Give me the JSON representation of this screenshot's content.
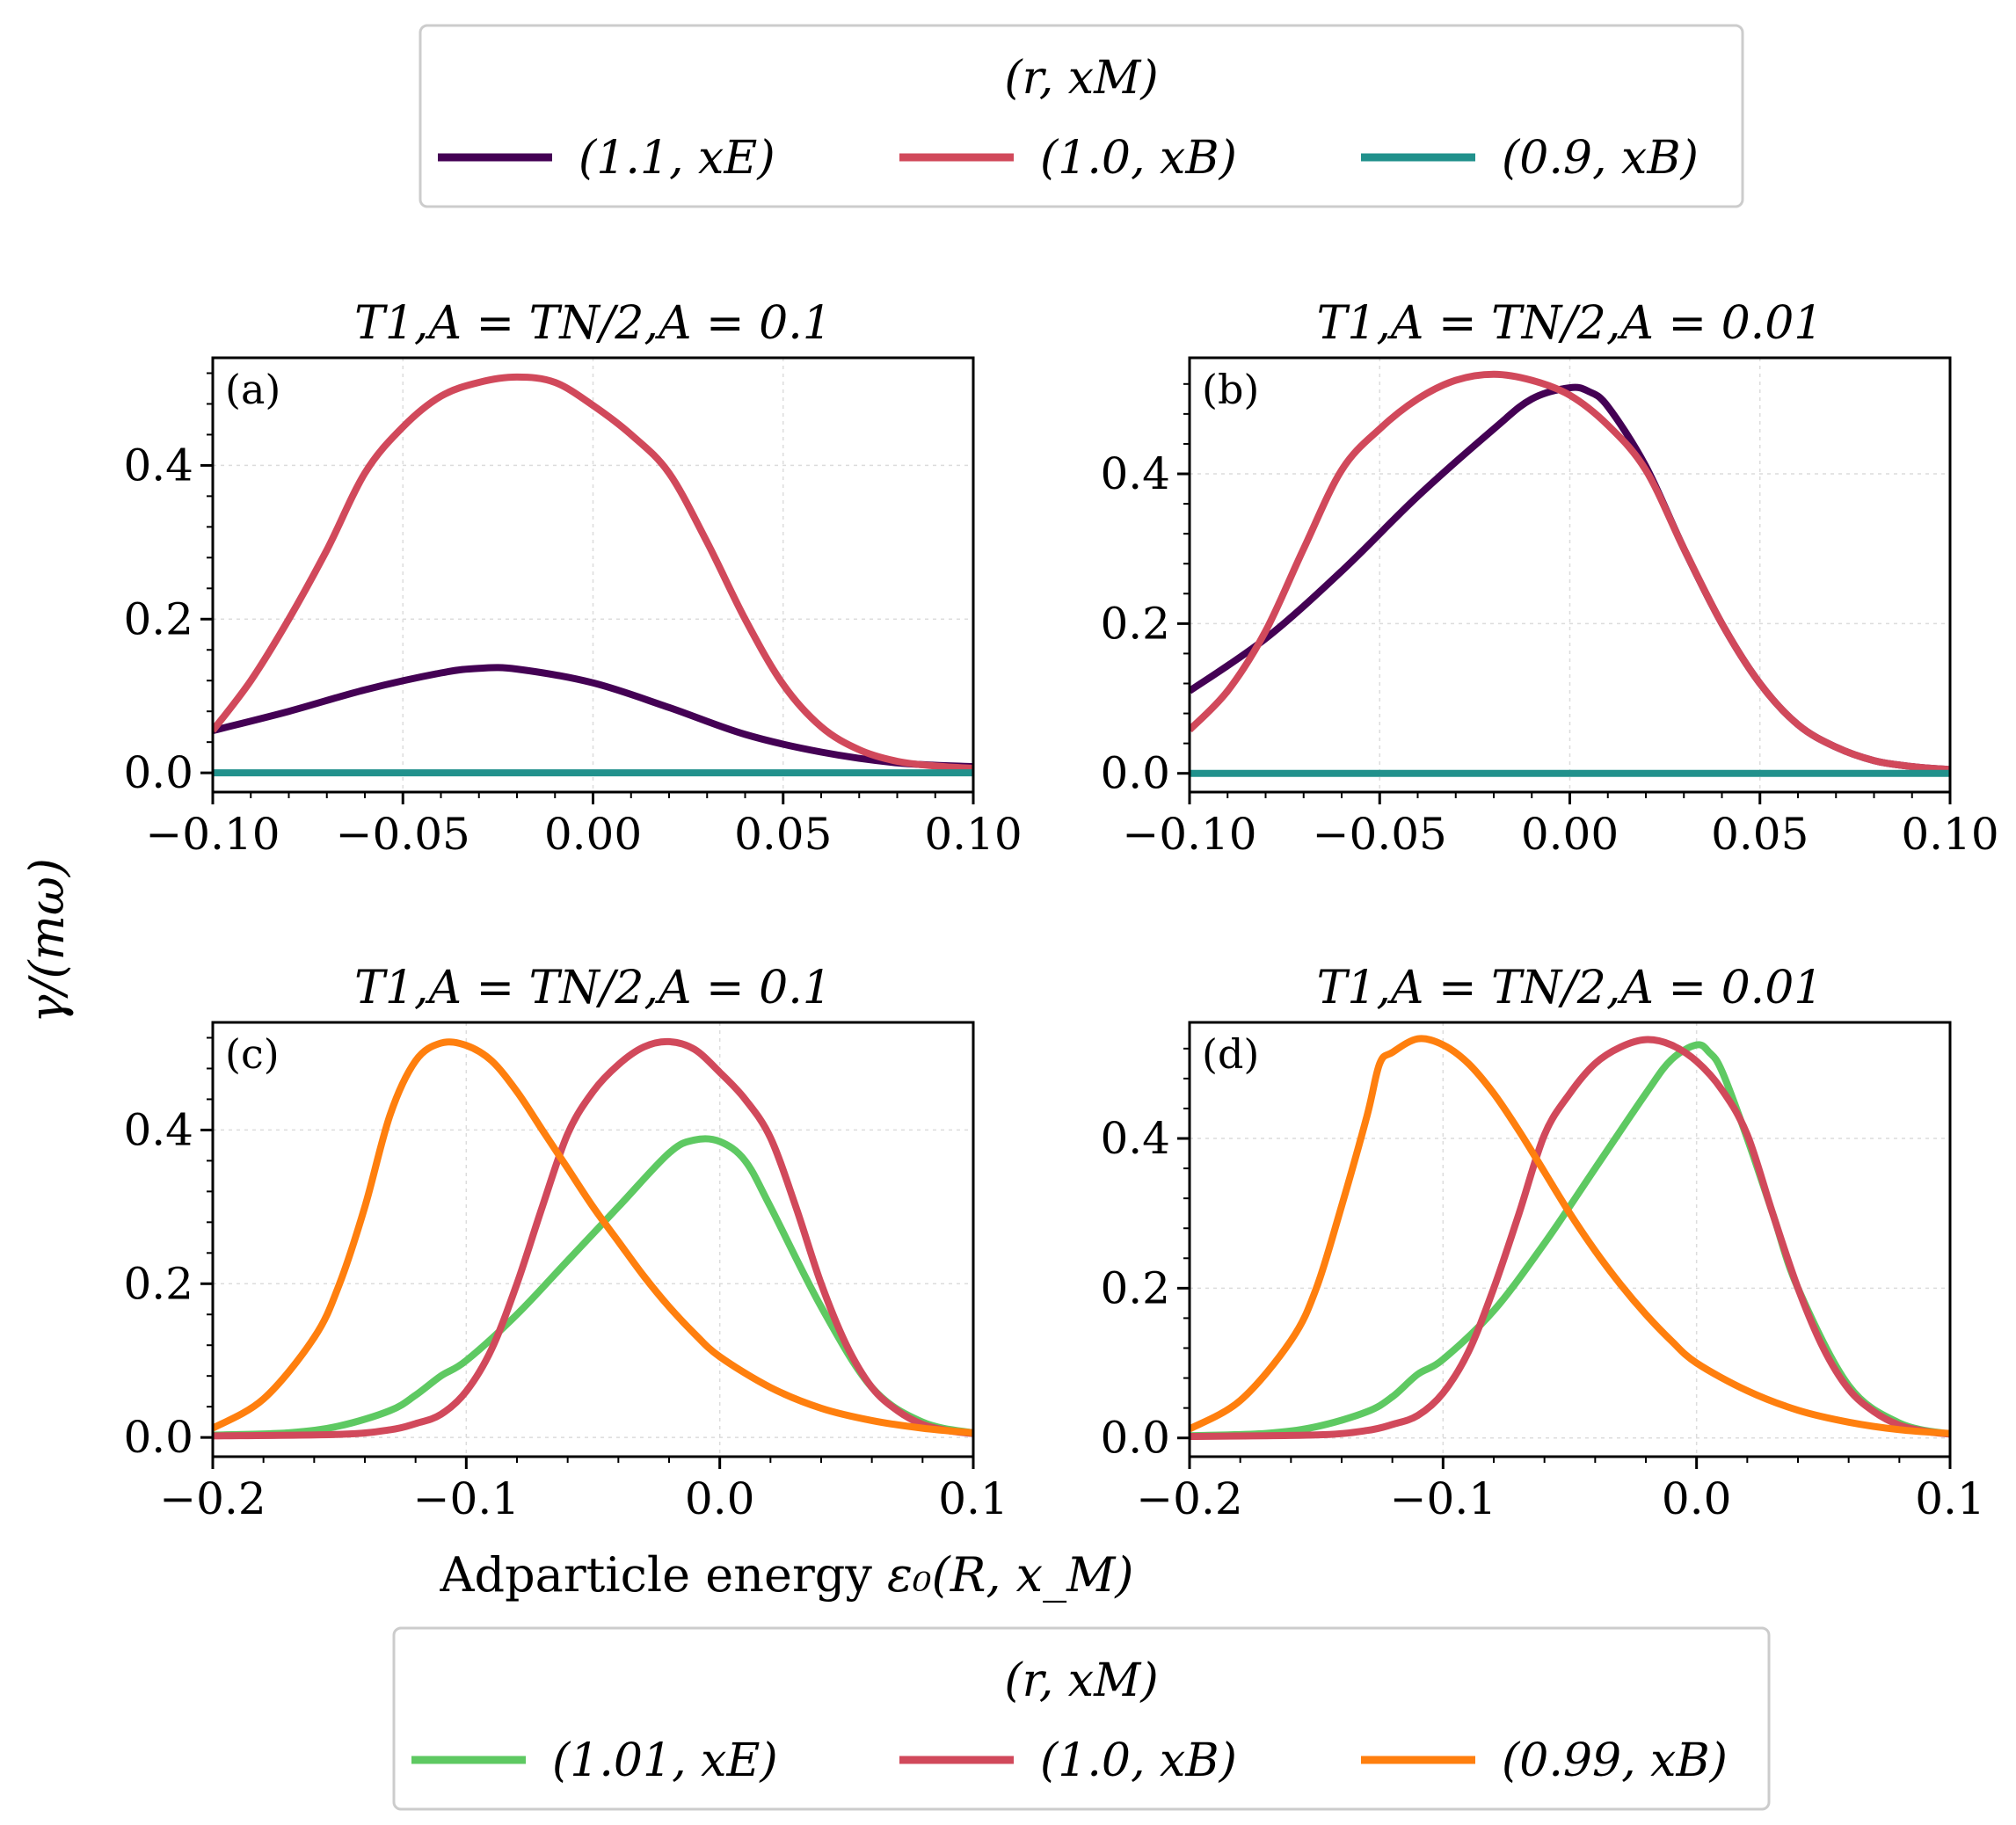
{
  "figure": {
    "ylabel": "γ/(mω)",
    "xlabel_plain": "Adparticle energy ",
    "xlabel_math": "ε₀(R, x_M)"
  },
  "legends": {
    "top": {
      "title": "(r, x_M)",
      "entries": [
        {
          "label": "(1.1, x_E)",
          "color": "#440154"
        },
        {
          "label": "(1.0, x_B)",
          "color": "#d1495b"
        },
        {
          "label": "(0.9, x_B)",
          "color": "#21918c"
        }
      ]
    },
    "bottom": {
      "title": "(r, x_M)",
      "entries": [
        {
          "label": "(1.01, x_E)",
          "color": "#5ec962"
        },
        {
          "label": "(1.0, x_B)",
          "color": "#d1495b"
        },
        {
          "label": "(0.99, x_B)",
          "color": "#ff7f0e"
        }
      ]
    }
  },
  "chart_data": [
    {
      "type": "line",
      "panel_label": "(a)",
      "title": "T_{1,A} = T_{N/2,A} = 0.1",
      "xlim": [
        -0.1,
        0.1
      ],
      "ylim": [
        -0.025,
        0.54
      ],
      "xticks": [
        -0.1,
        -0.05,
        0.0,
        0.05,
        0.1
      ],
      "xtick_labels": [
        "−0.10",
        "−0.05",
        "0.00",
        "0.05",
        "0.10"
      ],
      "yticks": [
        0.0,
        0.2,
        0.4
      ],
      "ytick_labels": [
        "0.0",
        "0.2",
        "0.4"
      ],
      "grid": true,
      "series": [
        {
          "name": "(1.1, x_E)",
          "color": "#440154",
          "x": [
            -0.1,
            -0.08,
            -0.06,
            -0.04,
            -0.03,
            -0.02,
            0.0,
            0.02,
            0.04,
            0.06,
            0.08,
            0.1
          ],
          "y": [
            0.055,
            0.08,
            0.108,
            0.13,
            0.136,
            0.135,
            0.117,
            0.085,
            0.05,
            0.027,
            0.013,
            0.008
          ]
        },
        {
          "name": "(1.0, x_B)",
          "color": "#d1495b",
          "x": [
            -0.1,
            -0.09,
            -0.08,
            -0.07,
            -0.06,
            -0.05,
            -0.04,
            -0.03,
            -0.02,
            -0.01,
            0.0,
            0.01,
            0.02,
            0.03,
            0.04,
            0.05,
            0.06,
            0.07,
            0.08,
            0.09,
            0.1
          ],
          "y": [
            0.055,
            0.12,
            0.2,
            0.29,
            0.39,
            0.45,
            0.49,
            0.508,
            0.515,
            0.508,
            0.478,
            0.44,
            0.39,
            0.3,
            0.2,
            0.115,
            0.06,
            0.03,
            0.015,
            0.009,
            0.006
          ]
        },
        {
          "name": "(0.9, x_B)",
          "color": "#21918c",
          "x": [
            -0.1,
            0.1
          ],
          "y": [
            0.0,
            0.0
          ]
        }
      ]
    },
    {
      "type": "line",
      "panel_label": "(b)",
      "title": "T_{1,A} = T_{N/2,A} = 0.01",
      "xlim": [
        -0.1,
        0.1
      ],
      "ylim": [
        -0.025,
        0.555
      ],
      "xticks": [
        -0.1,
        -0.05,
        0.0,
        0.05,
        0.1
      ],
      "xtick_labels": [
        "−0.10",
        "−0.05",
        "0.00",
        "0.05",
        "0.10"
      ],
      "yticks": [
        0.0,
        0.2,
        0.4
      ],
      "ytick_labels": [
        "0.0",
        "0.2",
        "0.4"
      ],
      "grid": true,
      "series": [
        {
          "name": "(1.1, x_E)",
          "color": "#440154",
          "x": [
            -0.1,
            -0.08,
            -0.06,
            -0.04,
            -0.02,
            -0.01,
            0.0,
            0.005,
            0.01,
            0.02,
            0.03,
            0.04,
            0.05,
            0.06,
            0.07,
            0.08,
            0.09,
            0.1
          ],
          "y": [
            0.11,
            0.18,
            0.27,
            0.37,
            0.46,
            0.5,
            0.515,
            0.51,
            0.49,
            0.41,
            0.3,
            0.2,
            0.12,
            0.065,
            0.035,
            0.017,
            0.009,
            0.005
          ]
        },
        {
          "name": "(1.0, x_B)",
          "color": "#d1495b",
          "x": [
            -0.1,
            -0.09,
            -0.08,
            -0.07,
            -0.06,
            -0.05,
            -0.04,
            -0.03,
            -0.02,
            -0.01,
            0.0,
            0.01,
            0.02,
            0.03,
            0.04,
            0.05,
            0.06,
            0.07,
            0.08,
            0.09,
            0.1
          ],
          "y": [
            0.058,
            0.11,
            0.19,
            0.3,
            0.405,
            0.46,
            0.5,
            0.525,
            0.533,
            0.525,
            0.505,
            0.465,
            0.405,
            0.3,
            0.2,
            0.12,
            0.065,
            0.035,
            0.017,
            0.009,
            0.005
          ]
        },
        {
          "name": "(0.9, x_B)",
          "color": "#21918c",
          "x": [
            -0.1,
            0.1
          ],
          "y": [
            0.0,
            0.0
          ]
        }
      ]
    },
    {
      "type": "line",
      "panel_label": "(c)",
      "title": "T_{1,A} = T_{N/2,A} = 0.1",
      "xlim": [
        -0.2,
        0.1
      ],
      "ylim": [
        -0.025,
        0.54
      ],
      "xticks": [
        -0.2,
        -0.1,
        0.0,
        0.1
      ],
      "xtick_labels": [
        "−0.2",
        "−0.1",
        "0.0",
        "0.1"
      ],
      "yticks": [
        0.0,
        0.2,
        0.4
      ],
      "ytick_labels": [
        "0.0",
        "0.2",
        "0.4"
      ],
      "grid": true,
      "series": [
        {
          "name": "(1.01, x_E)",
          "color": "#5ec962",
          "x": [
            -0.2,
            -0.17,
            -0.15,
            -0.13,
            -0.12,
            -0.11,
            -0.1,
            -0.08,
            -0.06,
            -0.04,
            -0.02,
            -0.01,
            0.0,
            0.01,
            0.02,
            0.04,
            0.06,
            0.08,
            0.1
          ],
          "y": [
            0.003,
            0.006,
            0.015,
            0.035,
            0.055,
            0.08,
            0.1,
            0.16,
            0.23,
            0.3,
            0.37,
            0.387,
            0.385,
            0.36,
            0.3,
            0.17,
            0.065,
            0.02,
            0.006
          ]
        },
        {
          "name": "(1.0, x_B)",
          "color": "#d1495b",
          "x": [
            -0.2,
            -0.15,
            -0.13,
            -0.12,
            -0.11,
            -0.1,
            -0.09,
            -0.08,
            -0.07,
            -0.06,
            -0.05,
            -0.04,
            -0.03,
            -0.02,
            -0.01,
            0.0,
            0.01,
            0.02,
            0.03,
            0.04,
            0.05,
            0.06,
            0.07,
            0.08,
            0.09,
            0.1
          ],
          "y": [
            0.002,
            0.004,
            0.01,
            0.018,
            0.03,
            0.06,
            0.115,
            0.2,
            0.3,
            0.395,
            0.45,
            0.485,
            0.508,
            0.515,
            0.505,
            0.475,
            0.44,
            0.39,
            0.3,
            0.2,
            0.12,
            0.065,
            0.035,
            0.017,
            0.009,
            0.005
          ]
        },
        {
          "name": "(0.99, x_B)",
          "color": "#ff7f0e",
          "x": [
            -0.2,
            -0.18,
            -0.16,
            -0.15,
            -0.14,
            -0.13,
            -0.12,
            -0.11,
            -0.1,
            -0.09,
            -0.08,
            -0.07,
            -0.06,
            -0.05,
            -0.04,
            -0.03,
            -0.02,
            -0.01,
            0.0,
            0.02,
            0.04,
            0.06,
            0.08,
            0.1
          ],
          "y": [
            0.012,
            0.05,
            0.13,
            0.2,
            0.3,
            0.42,
            0.49,
            0.513,
            0.51,
            0.49,
            0.45,
            0.4,
            0.35,
            0.3,
            0.255,
            0.21,
            0.17,
            0.135,
            0.105,
            0.065,
            0.038,
            0.022,
            0.012,
            0.006
          ]
        }
      ]
    },
    {
      "type": "line",
      "panel_label": "(d)",
      "title": "T_{1,A} = T_{N/2,A} = 0.01",
      "xlim": [
        -0.2,
        0.1
      ],
      "ylim": [
        -0.025,
        0.555
      ],
      "xticks": [
        -0.2,
        -0.1,
        0.0,
        0.1
      ],
      "xtick_labels": [
        "−0.2",
        "−0.1",
        "0.0",
        "0.1"
      ],
      "yticks": [
        0.0,
        0.2,
        0.4
      ],
      "ytick_labels": [
        "0.0",
        "0.2",
        "0.4"
      ],
      "grid": true,
      "series": [
        {
          "name": "(1.01, x_E)",
          "color": "#5ec962",
          "x": [
            -0.2,
            -0.17,
            -0.15,
            -0.13,
            -0.12,
            -0.11,
            -0.1,
            -0.08,
            -0.06,
            -0.04,
            -0.02,
            -0.01,
            0.0,
            0.005,
            0.01,
            0.02,
            0.03,
            0.04,
            0.06,
            0.08,
            0.1
          ],
          "y": [
            0.003,
            0.006,
            0.015,
            0.035,
            0.055,
            0.085,
            0.105,
            0.17,
            0.26,
            0.36,
            0.46,
            0.505,
            0.525,
            0.515,
            0.49,
            0.4,
            0.3,
            0.2,
            0.07,
            0.02,
            0.005
          ]
        },
        {
          "name": "(1.0, x_B)",
          "color": "#d1495b",
          "x": [
            -0.2,
            -0.15,
            -0.13,
            -0.12,
            -0.11,
            -0.1,
            -0.09,
            -0.08,
            -0.07,
            -0.06,
            -0.05,
            -0.04,
            -0.03,
            -0.02,
            -0.01,
            0.0,
            0.01,
            0.02,
            0.03,
            0.04,
            0.05,
            0.06,
            0.07,
            0.08,
            0.09,
            0.1
          ],
          "y": [
            0.002,
            0.004,
            0.01,
            0.018,
            0.03,
            0.06,
            0.115,
            0.2,
            0.3,
            0.405,
            0.46,
            0.5,
            0.522,
            0.532,
            0.525,
            0.503,
            0.465,
            0.405,
            0.3,
            0.2,
            0.12,
            0.065,
            0.035,
            0.017,
            0.009,
            0.005
          ]
        },
        {
          "name": "(0.99, x_B)",
          "color": "#ff7f0e",
          "x": [
            -0.2,
            -0.18,
            -0.16,
            -0.15,
            -0.14,
            -0.13,
            -0.125,
            -0.12,
            -0.11,
            -0.1,
            -0.09,
            -0.08,
            -0.07,
            -0.06,
            -0.05,
            -0.04,
            -0.03,
            -0.02,
            -0.01,
            0.0,
            0.02,
            0.04,
            0.06,
            0.08,
            0.1
          ],
          "y": [
            0.012,
            0.05,
            0.13,
            0.2,
            0.31,
            0.43,
            0.5,
            0.515,
            0.533,
            0.525,
            0.5,
            0.46,
            0.41,
            0.355,
            0.3,
            0.25,
            0.205,
            0.165,
            0.13,
            0.1,
            0.063,
            0.037,
            0.021,
            0.011,
            0.006
          ]
        }
      ]
    }
  ]
}
